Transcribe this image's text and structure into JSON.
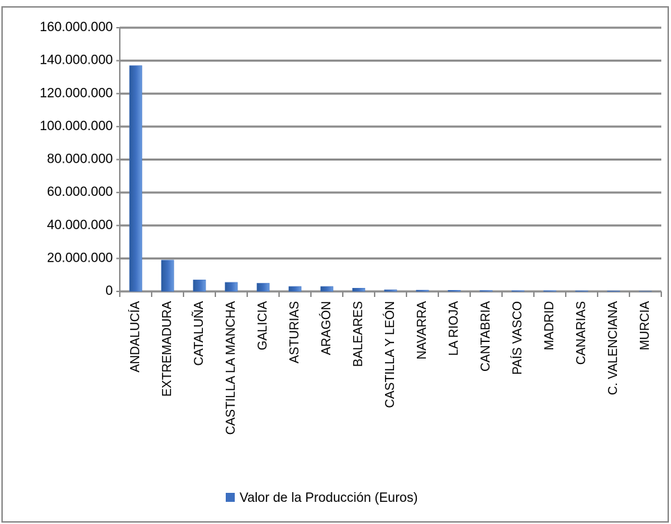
{
  "chart_data": {
    "type": "bar",
    "categories": [
      "ANDALUCÍA",
      "EXTREMADURA",
      "CATALUÑA",
      "CASTILLA LA MANCHA",
      "GALICIA",
      "ASTURIAS",
      "ARAGÓN",
      "BALEARES",
      "CASTILLA Y LEÓN",
      "NAVARRA",
      "LA RIOJA",
      "CANTABRIA",
      "PAÍS VASCO",
      "MADRID",
      "CANARIAS",
      "C. VALENCIANA",
      "MURCIA"
    ],
    "series": [
      {
        "name": "Valor de la Producción (Euros)",
        "color": "#3d6fc0",
        "values": [
          137000000,
          19000000,
          7000000,
          5500000,
          5000000,
          3000000,
          3000000,
          2000000,
          1000000,
          800000,
          700000,
          600000,
          500000,
          500000,
          400000,
          300000,
          100000
        ]
      }
    ],
    "ylim": [
      0,
      160000000
    ],
    "yticks": [
      0,
      {
        "value": 20000000,
        "label": "20.000.000"
      },
      {
        "value": 40000000,
        "label": "40.000.000"
      },
      {
        "value": 60000000,
        "label": "60.000.000"
      },
      {
        "value": 80000000,
        "label": "80.000.000"
      },
      {
        "value": 100000000,
        "label": "100.000.000"
      },
      {
        "value": 120000000,
        "label": "120.000.000"
      },
      {
        "value": 140000000,
        "label": "140.000.000"
      },
      {
        "value": 160000000,
        "label": "160.000.000"
      }
    ],
    "grid": true,
    "legend": "bottom"
  }
}
